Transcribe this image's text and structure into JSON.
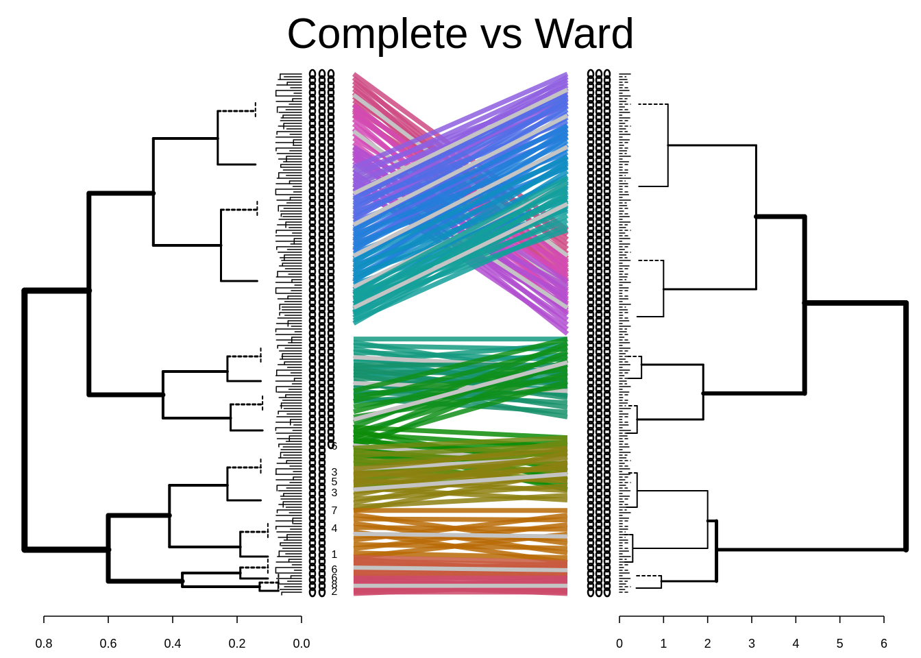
{
  "chart_data": {
    "type": "tanglegram",
    "title": "Complete vs Ward",
    "left_tree": {
      "method": "complete",
      "axis_ticks": [
        0.8,
        0.6,
        0.4,
        0.2,
        0.0
      ],
      "axis_range": [
        0.8,
        0.0
      ],
      "root_height": 0.86,
      "main_splits": [
        {
          "name": "upper",
          "height": 0.66
        },
        {
          "name": "lower",
          "height": 0.6
        }
      ],
      "sub_splits": [
        0.46,
        0.43,
        0.41,
        0.37
      ]
    },
    "right_tree": {
      "method": "ward",
      "axis_ticks": [
        0,
        1,
        2,
        3,
        4,
        5,
        6
      ],
      "axis_range": [
        0,
        6
      ],
      "root_height": 6.5,
      "main_splits": [
        {
          "name": "upper",
          "height": 4.2
        },
        {
          "name": "lower",
          "height": 2.2
        }
      ],
      "sub_splits": [
        3.1,
        1.9,
        2.0
      ]
    },
    "leaf_labels_visible": [
      "6",
      "3",
      "5",
      "3",
      "7",
      "4",
      "1",
      "6",
      "6",
      "8",
      "2"
    ],
    "connector_groups": [
      {
        "color": "#cc4a82",
        "from": [
          0.0,
          0.08
        ],
        "to": [
          0.3,
          0.4
        ]
      },
      {
        "color": "#d34ab6",
        "from": [
          0.06,
          0.16
        ],
        "to": [
          0.36,
          0.46
        ]
      },
      {
        "color": "#b24fd0",
        "from": [
          0.14,
          0.22
        ],
        "to": [
          0.4,
          0.5
        ]
      },
      {
        "color": "#8e5fe0",
        "from": [
          0.18,
          0.28
        ],
        "to": [
          0.0,
          0.06
        ]
      },
      {
        "color": "#4c6fe6",
        "from": [
          0.24,
          0.34
        ],
        "to": [
          0.04,
          0.12
        ]
      },
      {
        "color": "#1e7fd8",
        "from": [
          0.3,
          0.4
        ],
        "to": [
          0.1,
          0.18
        ]
      },
      {
        "color": "#0e8fc0",
        "from": [
          0.36,
          0.46
        ],
        "to": [
          0.16,
          0.26
        ]
      },
      {
        "color": "#14a09a",
        "from": [
          0.42,
          0.48
        ],
        "to": [
          0.2,
          0.3
        ]
      },
      {
        "color": "#159a80",
        "from": [
          0.51,
          0.58
        ],
        "to": [
          0.51,
          0.62
        ]
      },
      {
        "color": "#16906a",
        "from": [
          0.56,
          0.63
        ],
        "to": [
          0.56,
          0.66
        ]
      },
      {
        "color": "#0f8f1a",
        "from": [
          0.61,
          0.72
        ],
        "to": [
          0.51,
          0.6
        ]
      },
      {
        "color": "#0d8c08",
        "from": [
          0.68,
          0.75
        ],
        "to": [
          0.7,
          0.8
        ]
      },
      {
        "color": "#6f8a10",
        "from": [
          0.72,
          0.8
        ],
        "to": [
          0.7,
          0.78
        ]
      },
      {
        "color": "#8d8010",
        "from": [
          0.76,
          0.84
        ],
        "to": [
          0.72,
          0.82
        ]
      },
      {
        "color": "#b86a06",
        "from": [
          0.84,
          0.93
        ],
        "to": [
          0.84,
          0.94
        ]
      },
      {
        "color": "#c85a40",
        "from": [
          0.93,
          0.97
        ],
        "to": [
          0.94,
          0.97
        ]
      },
      {
        "color": "#cc4a6a",
        "from": [
          0.97,
          1.0
        ],
        "to": [
          0.97,
          1.0
        ]
      }
    ]
  }
}
